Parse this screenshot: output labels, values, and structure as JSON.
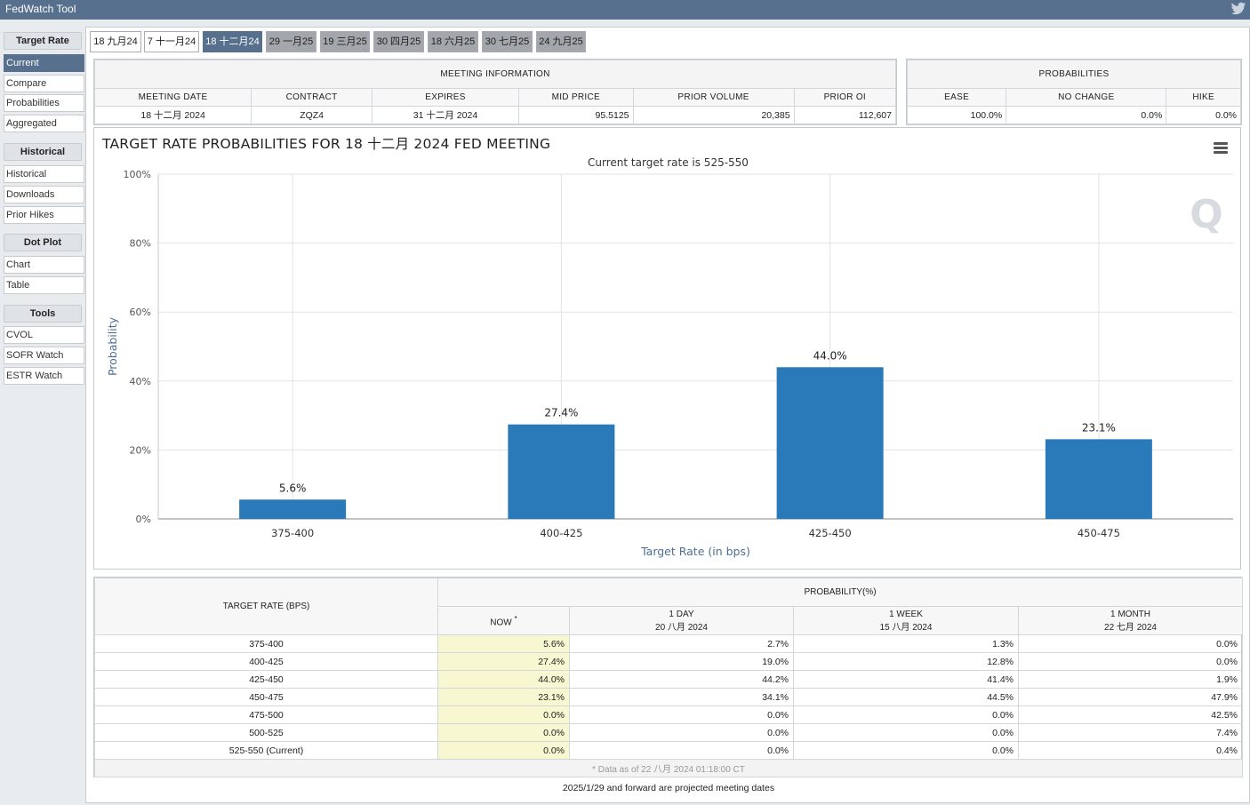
{
  "app": {
    "title": "FedWatch Tool"
  },
  "sidebar": {
    "sections": [
      {
        "label": "Target Rate",
        "items": [
          "Current",
          "Compare",
          "Probabilities",
          "Aggregated"
        ]
      },
      {
        "label": "Historical",
        "items": [
          "Historical",
          "Downloads",
          "Prior Hikes"
        ]
      },
      {
        "label": "Dot Plot",
        "items": [
          "Chart",
          "Table"
        ]
      },
      {
        "label": "Tools",
        "items": [
          "CVOL",
          "SOFR Watch",
          "ESTR Watch"
        ]
      }
    ],
    "active_item": "Current"
  },
  "tabs": [
    "18 九月24",
    "7 十一月24",
    "18 十二月24",
    "29 一月25",
    "19 三月25",
    "30 四月25",
    "18 六月25",
    "30 七月25",
    "24 九月25"
  ],
  "active_tab": "18 十二月24",
  "meeting_info": {
    "caption": "MEETING INFORMATION",
    "headers": [
      "MEETING DATE",
      "CONTRACT",
      "EXPIRES",
      "MID PRICE",
      "PRIOR VOLUME",
      "PRIOR OI"
    ],
    "values": [
      "18 十二月 2024",
      "ZQZ4",
      "31 十二月 2024",
      "95.5125",
      "20,385",
      "112,607"
    ]
  },
  "probabilities": {
    "caption": "PROBABILITIES",
    "headers": [
      "EASE",
      "NO CHANGE",
      "HIKE"
    ],
    "values": [
      "100.0%",
      "0.0%",
      "0.0%"
    ]
  },
  "chart": {
    "title": "TARGET RATE PROBABILITIES FOR 18 十二月 2024 FED MEETING",
    "subtitle": "Current target rate is 525-550",
    "watermark": "Q"
  },
  "chart_data": {
    "type": "bar",
    "categories": [
      "375-400",
      "400-425",
      "425-450",
      "450-475"
    ],
    "values": [
      5.6,
      27.4,
      44.0,
      23.1
    ],
    "data_labels": [
      "5.6%",
      "27.4%",
      "44.0%",
      "23.1%"
    ],
    "xlabel": "Target Rate (in bps)",
    "ylabel": "Probability",
    "ylim": [
      0,
      100
    ],
    "yticks": [
      "0%",
      "20%",
      "40%",
      "60%",
      "80%",
      "100%"
    ],
    "grid": true,
    "color": "#2a7ab9"
  },
  "prob_table": {
    "col_target": "TARGET RATE (BPS)",
    "col_group": "PROBABILITY(%)",
    "col_now": "NOW",
    "now_mark": "*",
    "col_1day": "1 DAY",
    "col_1day_date": "20 八月 2024",
    "col_1week": "1 WEEK",
    "col_1week_date": "15 八月 2024",
    "col_1month": "1 MONTH",
    "col_1month_date": "22 七月 2024",
    "rows": [
      {
        "rate": "375-400",
        "now": "5.6%",
        "day": "2.7%",
        "week": "1.3%",
        "month": "0.0%"
      },
      {
        "rate": "400-425",
        "now": "27.4%",
        "day": "19.0%",
        "week": "12.8%",
        "month": "0.0%"
      },
      {
        "rate": "425-450",
        "now": "44.0%",
        "day": "44.2%",
        "week": "41.4%",
        "month": "1.9%"
      },
      {
        "rate": "450-475",
        "now": "23.1%",
        "day": "34.1%",
        "week": "44.5%",
        "month": "47.9%"
      },
      {
        "rate": "475-500",
        "now": "0.0%",
        "day": "0.0%",
        "week": "0.0%",
        "month": "42.5%"
      },
      {
        "rate": "500-525",
        "now": "0.0%",
        "day": "0.0%",
        "week": "0.0%",
        "month": "7.4%"
      },
      {
        "rate": "525-550 (Current)",
        "now": "0.0%",
        "day": "0.0%",
        "week": "0.0%",
        "month": "0.4%"
      }
    ],
    "footnote": "* Data as of 22 八月 2024 01:18:00 CT"
  },
  "bottom_note": "2025/1/29 and forward are projected meeting dates"
}
